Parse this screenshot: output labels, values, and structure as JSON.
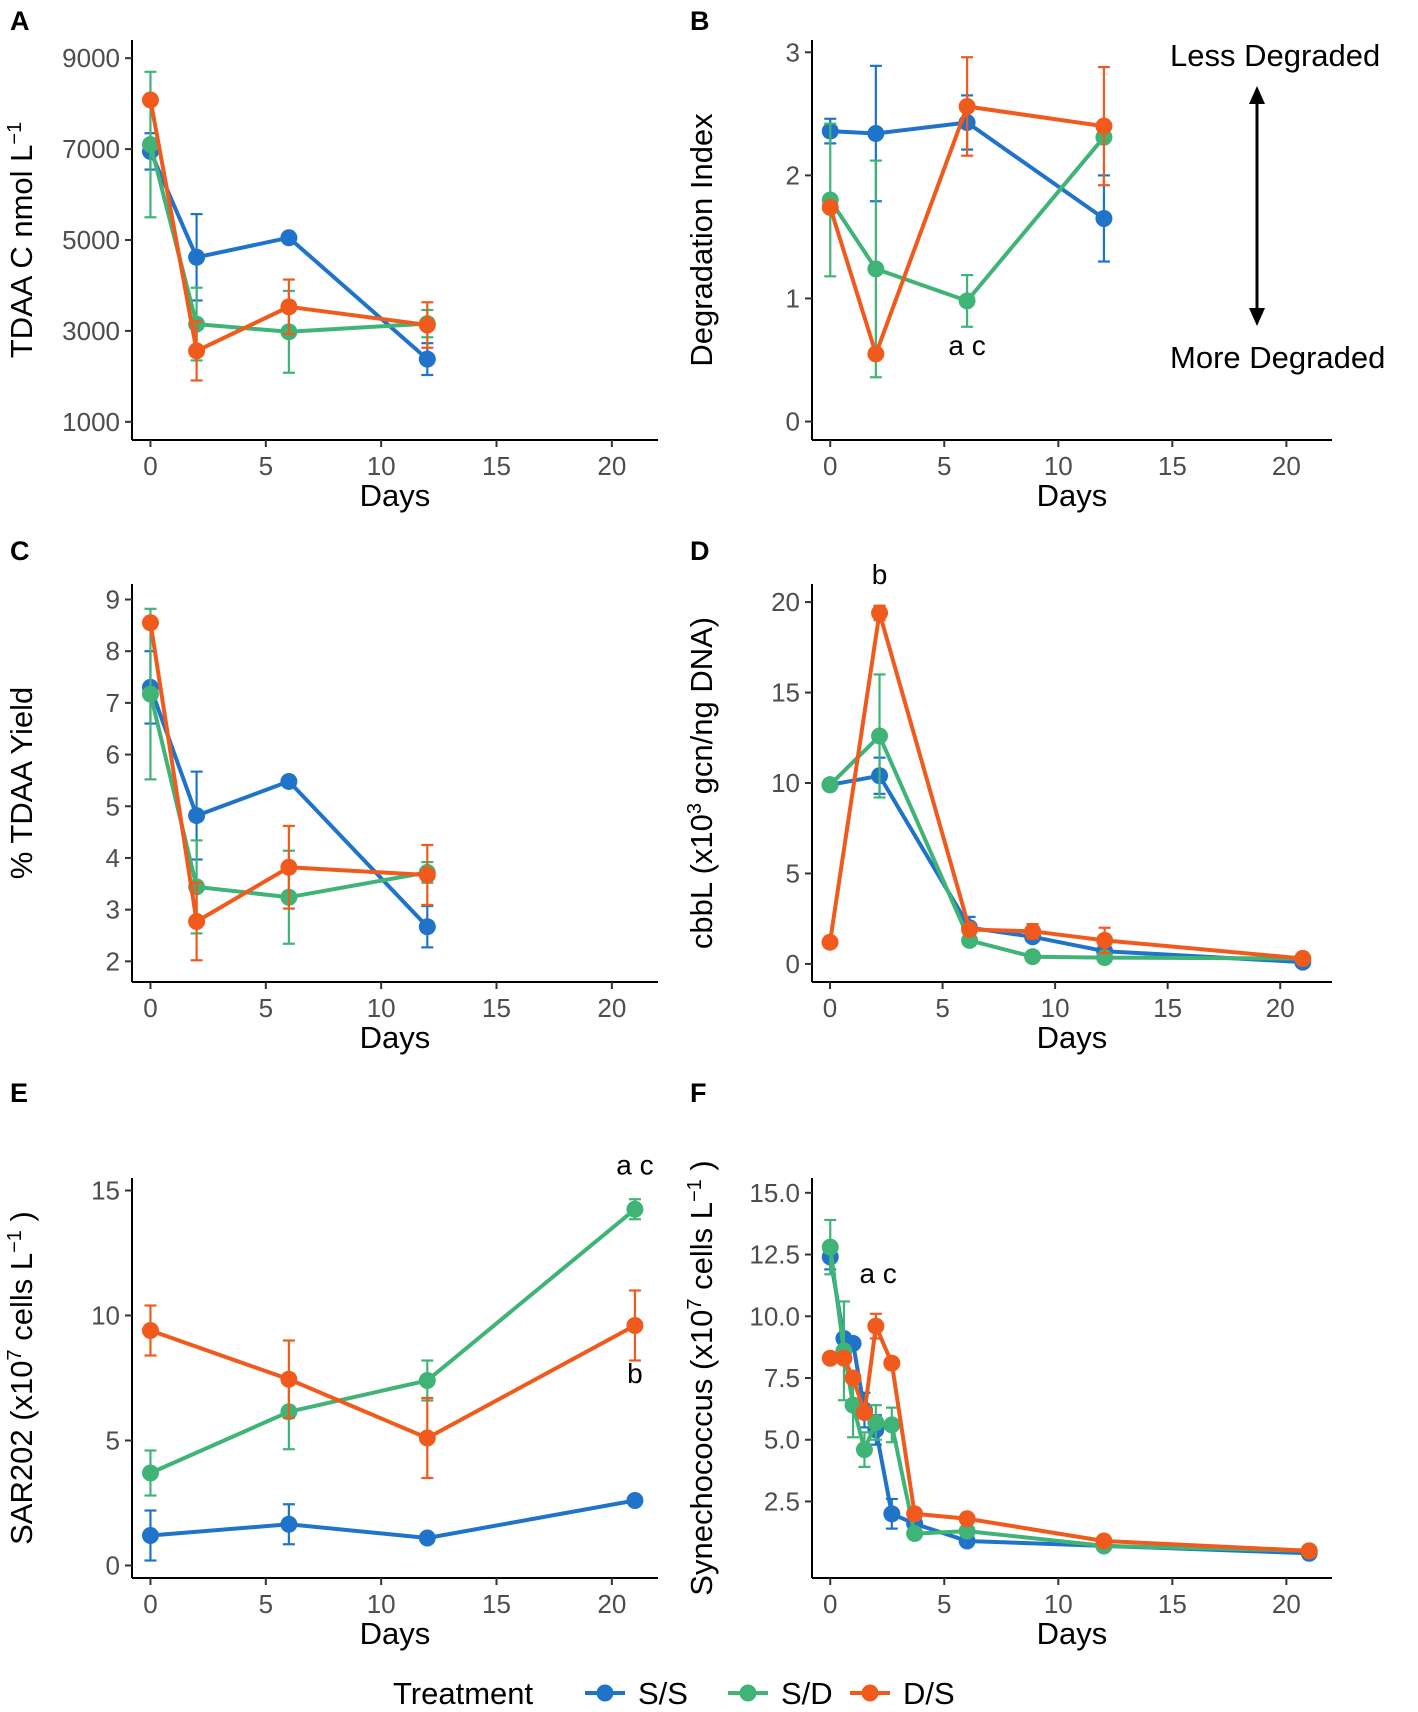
{
  "colors": {
    "S/S": "#1f74c9",
    "S/D": "#40b477",
    "D/S": "#f05a1d"
  },
  "legend": {
    "title": "Treatment",
    "items": [
      "S/S",
      "S/D",
      "D/S"
    ]
  },
  "chart_data": [
    {
      "panel": "A",
      "type": "line",
      "xlabel": "Days",
      "ylabel": "TDAA C nmol L",
      "ylabel_sup": "−1",
      "xlim": [
        -0.8,
        22
      ],
      "ylim": [
        600,
        9400
      ],
      "xticks": [
        0,
        5,
        10,
        15,
        20
      ],
      "yticks": [
        1000,
        3000,
        5000,
        7000,
        9000
      ],
      "series": [
        {
          "name": "S/S",
          "x": [
            0,
            2,
            6,
            12
          ],
          "y": [
            6950,
            4620,
            5050,
            2380
          ],
          "err": [
            400,
            950,
            0,
            350
          ]
        },
        {
          "name": "S/D",
          "x": [
            0,
            2,
            6,
            12
          ],
          "y": [
            7100,
            3150,
            2980,
            3160
          ],
          "err": [
            1600,
            800,
            900,
            300
          ]
        },
        {
          "name": "D/S",
          "x": [
            0,
            2,
            6,
            12
          ],
          "y": [
            8080,
            2560,
            3530,
            3130
          ],
          "err": [
            0,
            650,
            600,
            500
          ]
        }
      ],
      "annotations": []
    },
    {
      "panel": "B",
      "type": "line",
      "xlabel": "Days",
      "ylabel": "Degradation Index",
      "xlim": [
        -0.8,
        22
      ],
      "ylim": [
        -0.15,
        3.1
      ],
      "xticks": [
        0,
        5,
        10,
        15,
        20
      ],
      "yticks": [
        0,
        1,
        2,
        3
      ],
      "series": [
        {
          "name": "S/S",
          "x": [
            0,
            2,
            6,
            12
          ],
          "y": [
            2.36,
            2.34,
            2.43,
            1.65
          ],
          "err": [
            0.1,
            0.55,
            0.22,
            0.35
          ]
        },
        {
          "name": "S/D",
          "x": [
            0,
            2,
            6,
            12
          ],
          "y": [
            1.8,
            1.24,
            0.98,
            2.31
          ],
          "err": [
            0.62,
            0.88,
            0.21,
            0
          ]
        },
        {
          "name": "D/S",
          "x": [
            0,
            2,
            6,
            12
          ],
          "y": [
            1.74,
            0.55,
            2.56,
            2.4
          ],
          "err": [
            0,
            0,
            0.4,
            0.48
          ]
        }
      ],
      "annotations": [
        {
          "text": "a c",
          "x": 6,
          "y": 0.54
        }
      ],
      "side_text": {
        "top": "Less Degraded",
        "bottom": "More Degraded"
      }
    },
    {
      "panel": "C",
      "type": "line",
      "xlabel": "Days",
      "ylabel": "% TDAA Yield",
      "xlim": [
        -0.8,
        22
      ],
      "ylim": [
        1.6,
        9.3
      ],
      "xticks": [
        0,
        5,
        10,
        15,
        20
      ],
      "yticks": [
        2,
        3,
        4,
        5,
        6,
        7,
        8,
        9
      ],
      "series": [
        {
          "name": "S/S",
          "x": [
            0,
            2,
            6,
            12
          ],
          "y": [
            7.3,
            4.82,
            5.48,
            2.67
          ],
          "err": [
            0.7,
            0.85,
            0,
            0.4
          ]
        },
        {
          "name": "S/D",
          "x": [
            0,
            2,
            6,
            12
          ],
          "y": [
            7.17,
            3.44,
            3.24,
            3.72
          ],
          "err": [
            1.65,
            0.9,
            0.9,
            0.2
          ]
        },
        {
          "name": "D/S",
          "x": [
            0,
            2,
            6,
            12
          ],
          "y": [
            8.55,
            2.77,
            3.82,
            3.67
          ],
          "err": [
            0,
            0.75,
            0.8,
            0.58
          ]
        }
      ],
      "annotations": []
    },
    {
      "panel": "D",
      "type": "line",
      "xlabel": "Days",
      "ylabel": "cbbL (x10",
      "ylabel_sup": "3",
      "ylabel_tail": " gcn/ng DNA)",
      "xlim": [
        -0.8,
        22.3
      ],
      "ylim": [
        -1,
        21
      ],
      "xticks": [
        0,
        5,
        10,
        15,
        20
      ],
      "yticks": [
        0,
        5,
        10,
        15,
        20
      ],
      "series": [
        {
          "name": "S/S",
          "x": [
            0,
            2.2,
            6.2,
            9,
            12.2,
            21
          ],
          "y": [
            9.9,
            10.4,
            2.0,
            1.5,
            0.7,
            0.1
          ],
          "err": [
            0,
            1.0,
            0.6,
            0,
            0,
            0
          ]
        },
        {
          "name": "S/D",
          "x": [
            0,
            2.2,
            6.2,
            9,
            12.2,
            21
          ],
          "y": [
            9.9,
            12.6,
            1.3,
            0.4,
            0.35,
            0.3
          ],
          "err": [
            0,
            3.4,
            0,
            0,
            0,
            0
          ]
        },
        {
          "name": "D/S",
          "x": [
            0,
            2.2,
            6.2,
            9,
            12.2,
            21
          ],
          "y": [
            1.2,
            19.4,
            1.9,
            1.8,
            1.3,
            0.3
          ],
          "err": [
            0,
            0.4,
            0,
            0.4,
            0.7,
            0
          ]
        }
      ],
      "annotations": [
        {
          "text": "b",
          "x": 2.2,
          "y": 21.0
        }
      ]
    },
    {
      "panel": "E",
      "type": "line",
      "xlabel": "Days",
      "ylabel": "SAR202 (x10",
      "ylabel_sup": "7",
      "ylabel_tail": " cells L",
      "ylabel_sup2": "−1",
      "ylabel_end": " )",
      "xlim": [
        -0.8,
        22
      ],
      "ylim": [
        -0.5,
        15.5
      ],
      "xticks": [
        0,
        5,
        10,
        15,
        20
      ],
      "yticks": [
        0,
        5,
        10,
        15
      ],
      "series": [
        {
          "name": "S/S",
          "x": [
            0,
            6,
            12,
            21
          ],
          "y": [
            1.2,
            1.65,
            1.1,
            2.6
          ],
          "err": [
            1.0,
            0.8,
            0,
            0
          ]
        },
        {
          "name": "S/D",
          "x": [
            0,
            6,
            12,
            21
          ],
          "y": [
            3.7,
            6.15,
            7.4,
            14.25
          ],
          "err": [
            0.9,
            1.5,
            0.8,
            0.4
          ]
        },
        {
          "name": "D/S",
          "x": [
            0,
            6,
            12,
            21
          ],
          "y": [
            9.4,
            7.45,
            5.1,
            9.6
          ],
          "err": [
            1.0,
            1.55,
            1.6,
            1.4
          ]
        }
      ],
      "annotations": [
        {
          "text": "a c",
          "x": 21,
          "y": 15.65
        },
        {
          "text": "b",
          "x": 21,
          "y": 7.3
        }
      ]
    },
    {
      "panel": "F",
      "type": "line",
      "xlabel": "Days",
      "ylabel": "Synechococcus (x10",
      "ylabel_sup": "7",
      "ylabel_tail": " cells L",
      "ylabel_sup2": "−1",
      "ylabel_end": " )",
      "xlim": [
        -0.8,
        22
      ],
      "ylim": [
        -0.6,
        15.6
      ],
      "xticks": [
        0,
        5,
        10,
        15,
        20
      ],
      "yticks": [
        2.5,
        5.0,
        7.5,
        10.0,
        12.5,
        15.0
      ],
      "ytick_labels": [
        "2.5",
        "5.0",
        "7.5",
        "10.0",
        "12.5",
        "15.0"
      ],
      "series": [
        {
          "name": "S/S",
          "x": [
            0,
            0.6,
            1.0,
            1.5,
            2.0,
            2.7,
            3.7,
            6,
            12,
            21
          ],
          "y": [
            12.4,
            9.1,
            8.9,
            6.2,
            5.4,
            2.0,
            1.6,
            0.9,
            0.7,
            0.4
          ],
          "err": [
            0.5,
            0,
            0,
            0.7,
            0.6,
            0.6,
            0.4,
            0,
            0,
            0
          ]
        },
        {
          "name": "S/D",
          "x": [
            0,
            0.6,
            1.0,
            1.5,
            2.0,
            2.7,
            3.7,
            6,
            12,
            21
          ],
          "y": [
            12.8,
            8.6,
            6.4,
            4.6,
            5.7,
            5.6,
            1.2,
            1.3,
            0.7,
            0.5
          ],
          "err": [
            1.1,
            2.0,
            1.3,
            0.7,
            0.7,
            0.7,
            0,
            0,
            0,
            0
          ]
        },
        {
          "name": "D/S",
          "x": [
            0,
            0.6,
            1.0,
            1.5,
            2.0,
            2.7,
            3.7,
            6,
            12,
            21
          ],
          "y": [
            8.3,
            8.3,
            7.5,
            6.1,
            9.6,
            8.1,
            2.0,
            1.8,
            0.9,
            0.5
          ],
          "err": [
            0,
            0,
            0,
            0,
            0.5,
            0,
            0,
            0,
            0,
            0
          ]
        }
      ],
      "annotations": [
        {
          "text": "a c",
          "x": 2.1,
          "y": 11.35
        }
      ]
    }
  ]
}
